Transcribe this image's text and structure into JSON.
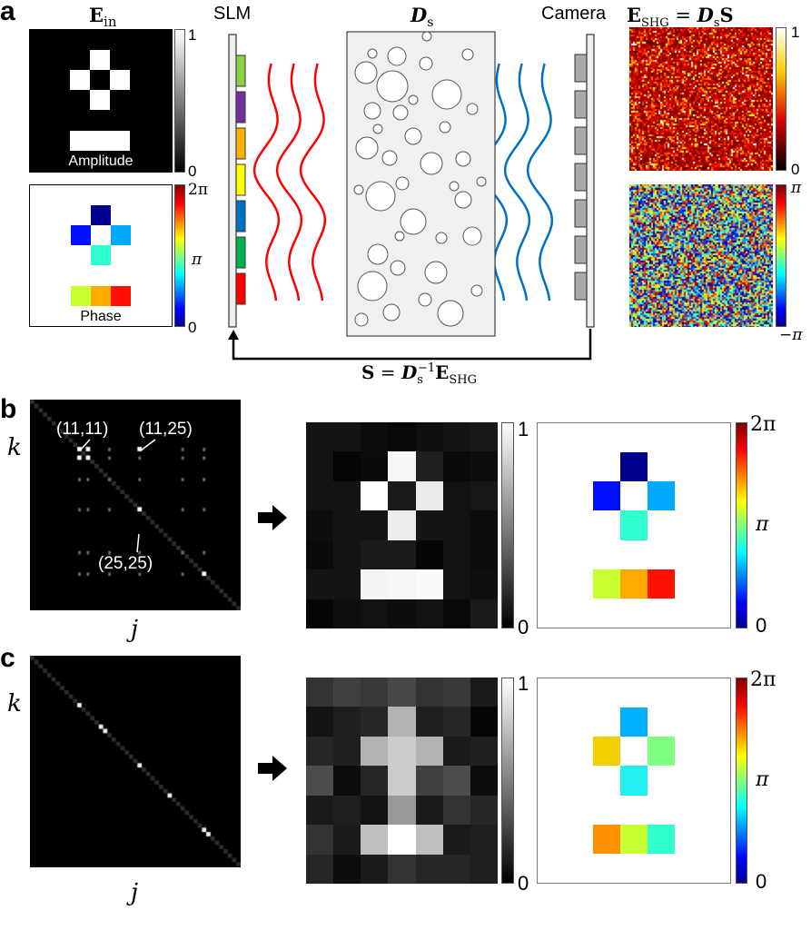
{
  "panels": {
    "a": "a",
    "b": "b",
    "c": "c"
  },
  "panel_a": {
    "ein_title": "E",
    "ein_sub": "in",
    "slm_label": "SLM",
    "ds_title": "D",
    "ds_sub": "s",
    "camera_label": "Camera",
    "eshg_title_main": "E",
    "eshg_title_sub": "SHG",
    "eshg_eq": " = ",
    "eshg_rhs_D": "D",
    "eshg_rhs_sub": "s",
    "eshg_rhs_S": "S",
    "amplitude_label": "Amplitude",
    "phase_label": "Phase",
    "amp_cb": {
      "max": "1",
      "min": "0"
    },
    "phase_cb": {
      "max": "2π",
      "mid": "π",
      "min": "0"
    },
    "shg_amp_cb": {
      "max": "1",
      "min": "0"
    },
    "shg_phase_cb": {
      "max": "π",
      "min": "−π"
    },
    "slm_pixel_colors": [
      "#8cd045",
      "#7030a0",
      "#ffb000",
      "#ffff00",
      "#0070c0",
      "#00b050",
      "#ff0000"
    ],
    "wave_colors": {
      "incident": "#ff0000",
      "scattered": "#0070c0"
    },
    "formula": {
      "S": "S",
      "eq": " = ",
      "D": "D",
      "sub": "s",
      "sup": "−1",
      "E": "E",
      "Esub": "SHG"
    }
  },
  "panel_b": {
    "matrix_ylabel": "k",
    "matrix_xlabel": "j",
    "annotations": [
      "(11,11)",
      "(11,25)",
      "(25,25)"
    ],
    "bright_spots": [
      [
        11,
        11
      ],
      [
        11,
        25
      ],
      [
        25,
        25
      ],
      [
        13,
        13
      ],
      [
        13,
        11
      ],
      [
        11,
        13
      ],
      [
        40,
        40
      ]
    ],
    "amp_cb": {
      "max": "1",
      "min": "0"
    },
    "phase_cb": {
      "max": "2π",
      "mid": "π",
      "min": "0"
    },
    "amplitude_grid": [
      [
        0.08,
        0.08,
        0.05,
        0.03,
        0.06,
        0.08,
        0.09
      ],
      [
        0.08,
        0.02,
        0.04,
        0.97,
        0.12,
        0.04,
        0.05
      ],
      [
        0.08,
        0.08,
        1.0,
        0.1,
        0.92,
        0.07,
        0.09
      ],
      [
        0.05,
        0.08,
        0.08,
        0.93,
        0.08,
        0.07,
        0.05
      ],
      [
        0.04,
        0.08,
        0.1,
        0.1,
        0.02,
        0.07,
        0.05
      ],
      [
        0.08,
        0.08,
        0.96,
        0.97,
        0.98,
        0.07,
        0.06
      ],
      [
        0.02,
        0.06,
        0.07,
        0.05,
        0.07,
        0.03,
        0.1
      ]
    ],
    "phase_colors": {
      "top": "#00008f",
      "left": "#0010ff",
      "right": "#00aaff",
      "bottom": "#30ffd0",
      "bar": [
        "#c8ff30",
        "#ffaa00",
        "#ff1000"
      ]
    }
  },
  "panel_c": {
    "matrix_ylabel": "k",
    "matrix_xlabel": "j",
    "amp_cb": {
      "max": "1",
      "min": "0"
    },
    "phase_cb": {
      "max": "2π",
      "mid": "π",
      "min": "0"
    },
    "amplitude_grid": [
      [
        0.2,
        0.25,
        0.22,
        0.28,
        0.2,
        0.22,
        0.1
      ],
      [
        0.08,
        0.12,
        0.15,
        0.7,
        0.12,
        0.15,
        0.02
      ],
      [
        0.15,
        0.12,
        0.7,
        0.8,
        0.7,
        0.1,
        0.12
      ],
      [
        0.3,
        0.05,
        0.15,
        0.8,
        0.25,
        0.3,
        0.05
      ],
      [
        0.1,
        0.12,
        0.08,
        0.6,
        0.1,
        0.2,
        0.15
      ],
      [
        0.2,
        0.1,
        0.75,
        1.0,
        0.75,
        0.1,
        0.12
      ],
      [
        0.15,
        0.05,
        0.1,
        0.2,
        0.15,
        0.15,
        0.12
      ]
    ],
    "phase_colors": {
      "top": "#00b0ff",
      "left": "#f0d000",
      "right": "#80ff80",
      "bottom": "#20f0f0",
      "bar": [
        "#ff9000",
        "#c8ff30",
        "#30ffd0"
      ]
    }
  }
}
